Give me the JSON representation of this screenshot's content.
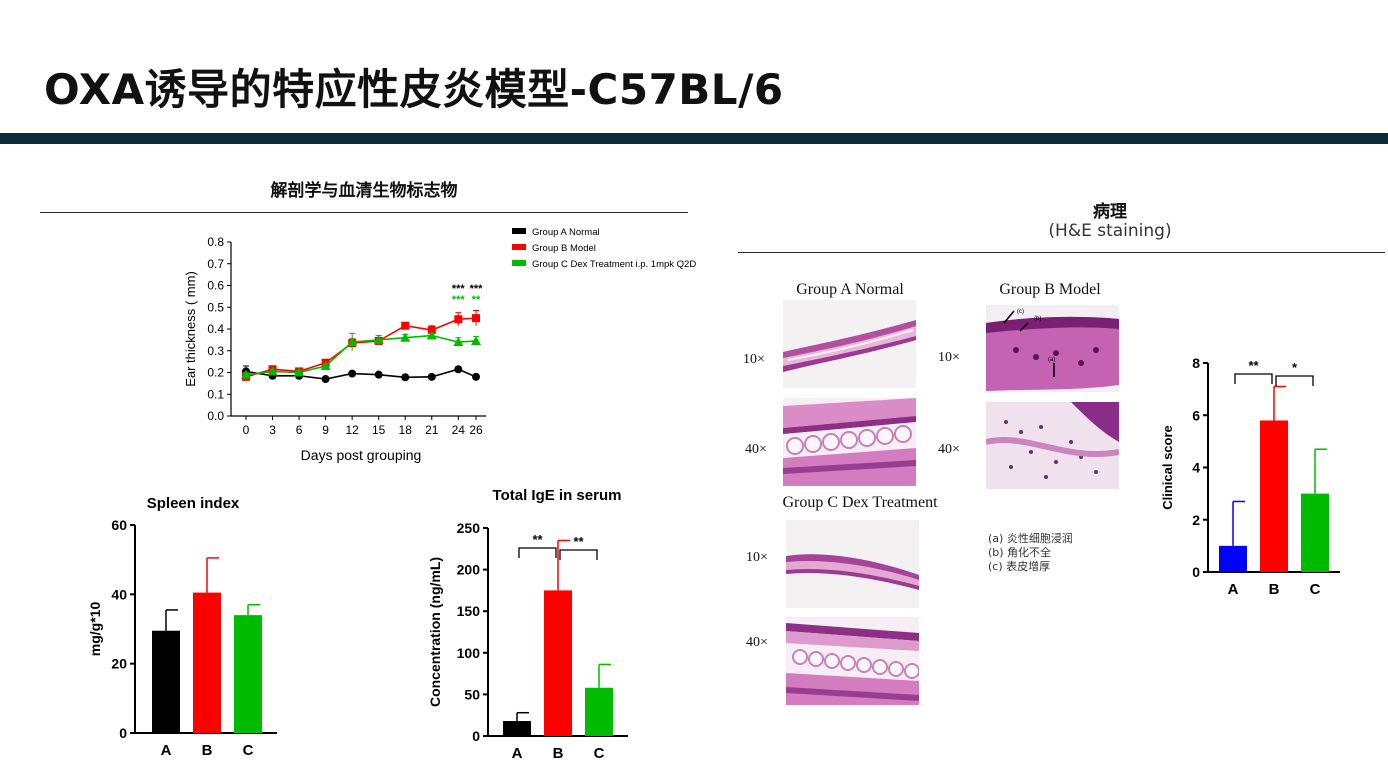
{
  "page": {
    "title": "OXA诱导的特应性皮炎模型-C57BL/6",
    "section_left": "解剖学与血清生物标志物",
    "section_right": "病理",
    "section_right_sub": "(H&E staining)",
    "pathology": {
      "group_a": "Group A Normal",
      "group_b": "Group B Model",
      "group_c": "Group C Dex Treatment",
      "mag_10": "10×",
      "mag_40": "40×",
      "notes": [
        "(a) 炎性细胞浸润",
        "(b) 角化不全",
        "(c) 表皮增厚"
      ],
      "arrow_labels": [
        "(c)",
        "(b)",
        "(a)"
      ]
    }
  },
  "colors": {
    "groupA": "#000000",
    "groupB": "#ff0000",
    "groupC": "#00bb00",
    "blue": "#0000ff",
    "band": "#0e2b3a"
  },
  "chart_data": [
    {
      "id": "ear",
      "type": "line",
      "xlabel": "Days post grouping",
      "ylabel": "Ear thickness ( mm)",
      "x": [
        0,
        3,
        6,
        9,
        12,
        15,
        18,
        21,
        24,
        26
      ],
      "ylim": [
        0,
        0.8
      ],
      "yticks": [
        "0.0",
        "0.1",
        "0.2",
        "0.3",
        "0.4",
        "0.5",
        "0.6",
        "0.7",
        "0.8"
      ],
      "series": [
        {
          "name": "Group A Normal",
          "color": "#000000",
          "marker": "circle",
          "values": [
            0.205,
            0.185,
            0.185,
            0.17,
            0.195,
            0.19,
            0.178,
            0.18,
            0.215,
            0.18
          ],
          "errors": [
            0.025,
            0.01,
            0.01,
            0.01,
            0.01,
            0.01,
            0.005,
            0.005,
            0.01,
            0.005
          ]
        },
        {
          "name": "Group B Model",
          "color": "#ff0000",
          "marker": "square",
          "values": [
            0.18,
            0.215,
            0.205,
            0.245,
            0.335,
            0.345,
            0.415,
            0.395,
            0.445,
            0.45
          ],
          "errors": [
            0.01,
            0.01,
            0.01,
            0.015,
            0.02,
            0.015,
            0.015,
            0.02,
            0.03,
            0.035
          ]
        },
        {
          "name": "Group C Dex Treatment i.p. 1mpk Q2D",
          "color": "#00bb00",
          "marker": "triangle",
          "values": [
            0.19,
            0.205,
            0.2,
            0.23,
            0.34,
            0.35,
            0.36,
            0.37,
            0.34,
            0.345
          ],
          "errors": [
            0.01,
            0.01,
            0.01,
            0.01,
            0.04,
            0.02,
            0.015,
            0.01,
            0.02,
            0.02
          ]
        }
      ],
      "annotations": [
        {
          "x": 24,
          "text": "***",
          "color": "#000000"
        },
        {
          "x": 24,
          "text": "***",
          "color": "#00bb00"
        },
        {
          "x": 26,
          "text": "***",
          "color": "#000000"
        },
        {
          "x": 26,
          "text": "**",
          "color": "#00bb00"
        }
      ]
    },
    {
      "id": "spleen",
      "type": "bar",
      "title": "Spleen index",
      "ylabel": "mg/g*10",
      "categories": [
        "A",
        "B",
        "C"
      ],
      "values": [
        29.5,
        40.5,
        34
      ],
      "errors": [
        6,
        10,
        3
      ],
      "ylim": [
        0,
        60
      ],
      "yticks": [
        "0",
        "20",
        "40",
        "60"
      ]
    },
    {
      "id": "ige",
      "type": "bar",
      "title": "Total IgE in serum",
      "ylabel": "Concentration (ng/mL)",
      "categories": [
        "A",
        "B",
        "C"
      ],
      "values": [
        18,
        175,
        58
      ],
      "errors": [
        10,
        60,
        28
      ],
      "ylim": [
        0,
        250
      ],
      "yticks": [
        "0",
        "50",
        "100",
        "150",
        "200",
        "250"
      ],
      "significance": [
        {
          "pair": [
            0,
            1
          ],
          "text": "**"
        },
        {
          "pair": [
            1,
            2
          ],
          "text": "**"
        }
      ]
    },
    {
      "id": "clinical",
      "type": "bar",
      "ylabel": "Clinical score",
      "categories": [
        "A",
        "B",
        "C"
      ],
      "values": [
        1,
        5.8,
        3
      ],
      "errors": [
        1.7,
        1.3,
        1.7
      ],
      "ylim": [
        0,
        8
      ],
      "yticks": [
        "0",
        "2",
        "4",
        "6",
        "8"
      ],
      "significance": [
        {
          "pair": [
            0,
            1
          ],
          "text": "**"
        },
        {
          "pair": [
            1,
            2
          ],
          "text": "*"
        }
      ]
    }
  ]
}
